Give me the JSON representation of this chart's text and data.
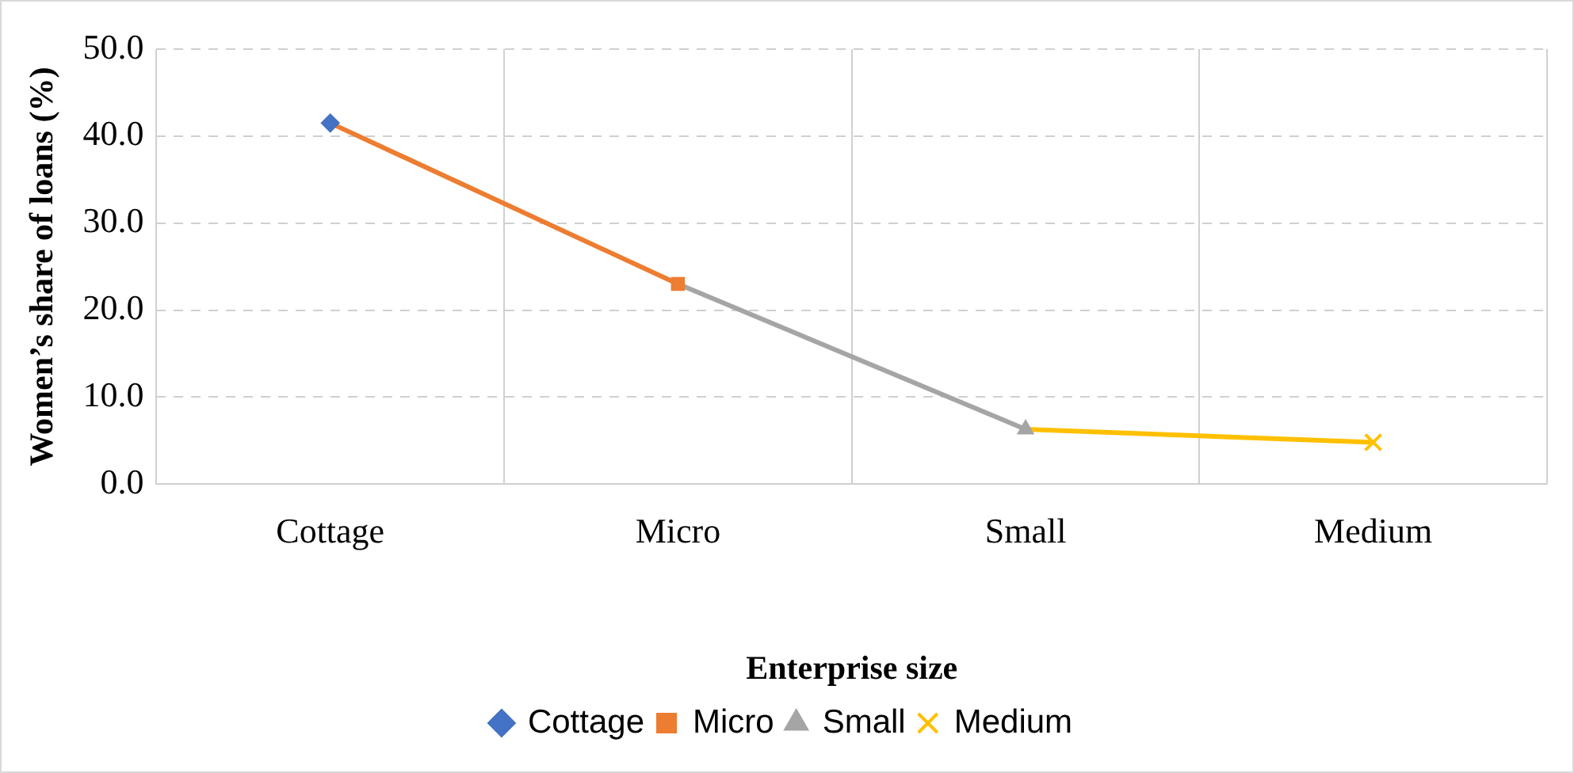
{
  "chart_data": {
    "type": "line",
    "xlabel": "Enterprise size",
    "ylabel": "Women’s share of loans (%)",
    "categories": [
      "Cottage",
      "Micro",
      "Small",
      "Medium"
    ],
    "series": [
      {
        "name": "Cottage",
        "color": "#4472c4",
        "marker": "diamond",
        "values": [
          41.5,
          null,
          null,
          null
        ]
      },
      {
        "name": "Micro",
        "color": "#ed7d31",
        "marker": "square",
        "values": [
          41.5,
          23.0,
          null,
          null
        ]
      },
      {
        "name": "Small",
        "color": "#a5a5a5",
        "marker": "triangle",
        "values": [
          null,
          23.0,
          6.3,
          null
        ]
      },
      {
        "name": "Medium",
        "color": "#ffc000",
        "marker": "cross",
        "values": [
          null,
          null,
          6.3,
          4.8
        ]
      }
    ],
    "ylim": [
      0,
      50
    ],
    "yticks": [
      {
        "value": 0,
        "label": "0.0"
      },
      {
        "value": 10,
        "label": "10.0"
      },
      {
        "value": 20,
        "label": "20.0"
      },
      {
        "value": 30,
        "label": "30.0"
      },
      {
        "value": 40,
        "label": "40.0"
      },
      {
        "value": 50,
        "label": "50.0"
      }
    ],
    "grid": true,
    "legend": "bottom",
    "line_style": "solid"
  }
}
